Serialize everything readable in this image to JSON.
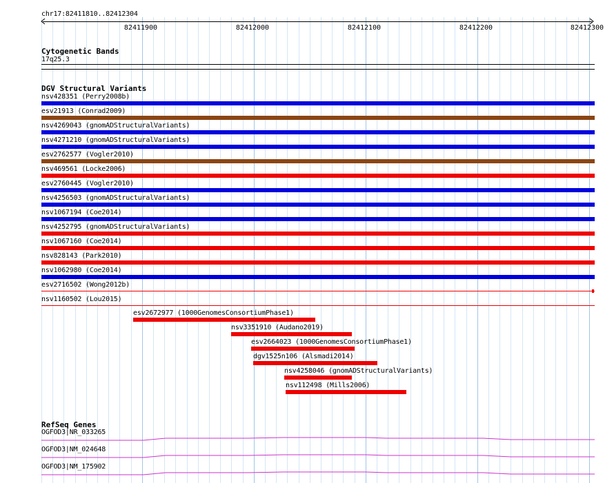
{
  "ruler": {
    "region": "chr17:82411810..82412304",
    "ticks": [
      "82411900",
      "82412000",
      "82412100",
      "82412200",
      "82412300"
    ]
  },
  "cytoband": {
    "title": "Cytogenetic Bands",
    "band": "17q25.3"
  },
  "dgv": {
    "title": "DGV Structural Variants",
    "full_width_variants": [
      {
        "label": "nsv428351 (Perry2008b)",
        "color": "#0000dd"
      },
      {
        "label": "esv21913 (Conrad2009)",
        "color": "#8b4513"
      },
      {
        "label": "nsv4269043 (gnomADStructuralVariants)",
        "color": "#0000dd"
      },
      {
        "label": "nsv4271210 (gnomADStructuralVariants)",
        "color": "#0000dd"
      },
      {
        "label": "esv2762577 (Vogler2010)",
        "color": "#8b4513"
      },
      {
        "label": "nsv469561 (Locke2006)",
        "color": "#ee0000"
      },
      {
        "label": "esv2760445 (Vogler2010)",
        "color": "#0000dd"
      },
      {
        "label": "nsv4256503 (gnomADStructuralVariants)",
        "color": "#0000dd"
      },
      {
        "label": "nsv1067194 (Coe2014)",
        "color": "#0000dd"
      },
      {
        "label": "nsv4252795 (gnomADStructuralVariants)",
        "color": "#ee0000"
      },
      {
        "label": "nsv1067160 (Coe2014)",
        "color": "#ee0000"
      },
      {
        "label": "nsv828143 (Park2010)",
        "color": "#ee0000"
      },
      {
        "label": "nsv1062980 (Coe2014)",
        "color": "#0000dd"
      },
      {
        "label": "esv2716502 (Wong2012b)",
        "color": "#ee0000"
      },
      {
        "label": "nsv1160502 (Lou2015)",
        "color": "#ee0000"
      }
    ],
    "partial_variants": [
      {
        "label": "esv2672977 (1000GenomesConsortiumPhase1)",
        "color": "#ee0000"
      },
      {
        "label": "nsv3351910 (Audano2019)",
        "color": "#ee0000"
      },
      {
        "label": "esv2664023 (1000GenomesConsortiumPhase1)",
        "color": "#ee0000"
      },
      {
        "label": "dgv1525n106 (Alsmadi2014)",
        "color": "#ee0000"
      },
      {
        "label": "nsv4258046 (gnomADStructuralVariants)",
        "color": "#ee0000"
      },
      {
        "label": "nsv112498 (Mills2006)",
        "color": "#ee0000"
      }
    ]
  },
  "refseq": {
    "title": "RefSeq Genes",
    "genes": [
      {
        "label": "OGFOD3|NR_033265",
        "color": "#cc33cc"
      },
      {
        "label": "OGFOD3|NM_024648",
        "color": "#cc33cc"
      },
      {
        "label": "OGFOD3|NM_175902",
        "color": "#cc33cc"
      }
    ]
  }
}
